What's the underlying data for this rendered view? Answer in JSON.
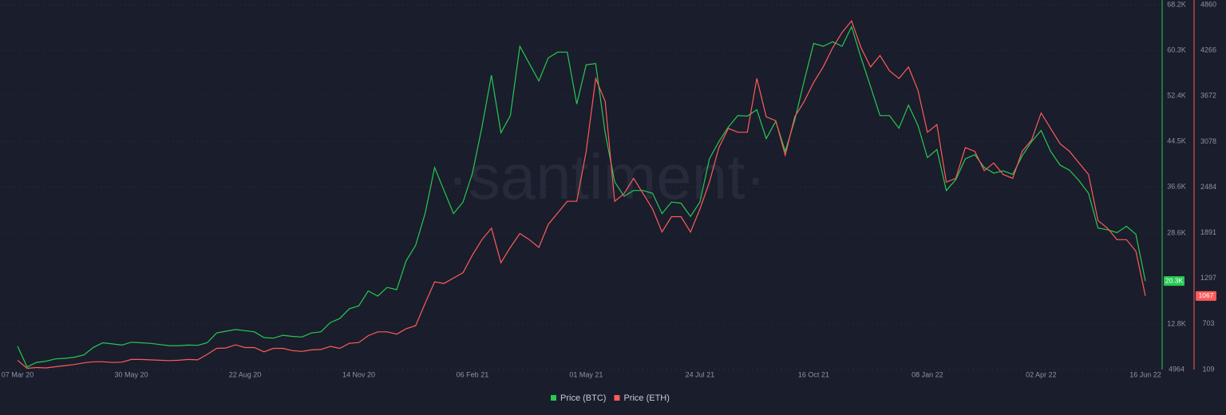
{
  "chart_data": {
    "type": "line",
    "watermark": "·santiment·",
    "x": [
      "07 Mar 20",
      "14 Mar 20",
      "21 Mar 20",
      "28 Mar 20",
      "04 Apr 20",
      "11 Apr 20",
      "18 Apr 20",
      "25 Apr 20",
      "02 May 20",
      "09 May 20",
      "16 May 20",
      "23 May 20",
      "30 May 20",
      "06 Jun 20",
      "13 Jun 20",
      "20 Jun 20",
      "27 Jun 20",
      "04 Jul 20",
      "11 Jul 20",
      "18 Jul 20",
      "25 Jul 20",
      "01 Aug 20",
      "08 Aug 20",
      "15 Aug 20",
      "22 Aug 20",
      "29 Aug 20",
      "05 Sep 20",
      "12 Sep 20",
      "19 Sep 20",
      "26 Sep 20",
      "03 Oct 20",
      "10 Oct 20",
      "17 Oct 20",
      "24 Oct 20",
      "31 Oct 20",
      "07 Nov 20",
      "14 Nov 20",
      "21 Nov 20",
      "28 Nov 20",
      "05 Dec 20",
      "12 Dec 20",
      "19 Dec 20",
      "26 Dec 20",
      "02 Jan 21",
      "09 Jan 21",
      "16 Jan 21",
      "23 Jan 21",
      "30 Jan 21",
      "06 Feb 21",
      "13 Feb 21",
      "20 Feb 21",
      "27 Feb 21",
      "06 Mar 21",
      "13 Mar 21",
      "20 Mar 21",
      "27 Mar 21",
      "03 Apr 21",
      "10 Apr 21",
      "17 Apr 21",
      "24 Apr 21",
      "01 May 21",
      "08 May 21",
      "15 May 21",
      "22 May 21",
      "29 May 21",
      "05 Jun 21",
      "12 Jun 21",
      "19 Jun 21",
      "26 Jun 21",
      "03 Jul 21",
      "10 Jul 21",
      "17 Jul 21",
      "24 Jul 21",
      "31 Jul 21",
      "07 Aug 21",
      "14 Aug 21",
      "21 Aug 21",
      "28 Aug 21",
      "04 Sep 21",
      "11 Sep 21",
      "18 Sep 21",
      "25 Sep 21",
      "02 Oct 21",
      "09 Oct 21",
      "16 Oct 21",
      "23 Oct 21",
      "30 Oct 21",
      "06 Nov 21",
      "13 Nov 21",
      "20 Nov 21",
      "27 Nov 21",
      "04 Dec 21",
      "11 Dec 21",
      "18 Dec 21",
      "25 Dec 21",
      "01 Jan 22",
      "08 Jan 22",
      "15 Jan 22",
      "22 Jan 22",
      "29 Jan 22",
      "05 Feb 22",
      "12 Feb 22",
      "19 Feb 22",
      "26 Feb 22",
      "05 Mar 22",
      "12 Mar 22",
      "19 Mar 22",
      "26 Mar 22",
      "02 Apr 22",
      "09 Apr 22",
      "16 Apr 22",
      "23 Apr 22",
      "30 Apr 22",
      "07 May 22",
      "14 May 22",
      "21 May 22",
      "28 May 22",
      "04 Jun 22",
      "11 Jun 22",
      "16 Jun 22"
    ],
    "xticks": [
      "07 Mar 20",
      "30 May 20",
      "22 Aug 20",
      "14 Nov 20",
      "06 Feb 21",
      "01 May 21",
      "24 Jul 21",
      "16 Oct 21",
      "08 Jan 22",
      "02 Apr 22",
      "16 Jun 22"
    ],
    "series": [
      {
        "name": "Price (BTC)",
        "color": "#26c953",
        "badge": "20.3K",
        "values": [
          9000,
          5400,
          6200,
          6400,
          6800,
          6900,
          7100,
          7500,
          8800,
          9600,
          9400,
          9200,
          9700,
          9600,
          9500,
          9300,
          9100,
          9100,
          9200,
          9150,
          9600,
          11300,
          11600,
          11900,
          11700,
          11500,
          10500,
          10400,
          10900,
          10700,
          10600,
          11300,
          11500,
          13100,
          13800,
          15500,
          16000,
          18600,
          17700,
          19200,
          18800,
          23800,
          26500,
          32000,
          40000,
          36000,
          32000,
          34000,
          39000,
          47000,
          56000,
          46000,
          49000,
          61000,
          58000,
          55000,
          59000,
          60000,
          60000,
          51000,
          57800,
          58000,
          46000,
          37500,
          35000,
          36000,
          36000,
          35500,
          32000,
          34000,
          33800,
          31500,
          34000,
          41500,
          44500,
          47000,
          49000,
          48900,
          50000,
          45000,
          48000,
          42800,
          48200,
          55000,
          61500,
          61000,
          61800,
          61000,
          64400,
          59000,
          54000,
          49000,
          49000,
          46800,
          50800,
          47300,
          41700,
          43100,
          36000,
          37900,
          41500,
          42200,
          40000,
          39000,
          39400,
          38800,
          42000,
          44500,
          46400,
          42800,
          40400,
          39500,
          37700,
          35500,
          29500,
          29200,
          28700,
          29800,
          28400,
          20300
        ]
      },
      {
        "name": "Price (ETH)",
        "color": "#ff5b5b",
        "axis": "y2",
        "badge": "1067",
        "values": [
          230,
          125,
          135,
          130,
          145,
          160,
          175,
          195,
          210,
          210,
          200,
          205,
          240,
          240,
          235,
          230,
          225,
          230,
          240,
          235,
          305,
          385,
          390,
          430,
          395,
          395,
          340,
          385,
          385,
          355,
          345,
          365,
          370,
          410,
          385,
          450,
          460,
          550,
          600,
          600,
          570,
          640,
          680,
          970,
          1250,
          1230,
          1300,
          1370,
          1600,
          1800,
          1950,
          1500,
          1700,
          1880,
          1800,
          1700,
          2000,
          2150,
          2300,
          2300,
          2950,
          3900,
          3600,
          2300,
          2400,
          2600,
          2400,
          2200,
          1900,
          2100,
          2100,
          1900,
          2200,
          2550,
          3000,
          3250,
          3200,
          3200,
          3900,
          3400,
          3350,
          2900,
          3400,
          3600,
          3850,
          4050,
          4300,
          4500,
          4650,
          4300,
          4050,
          4200,
          4000,
          3900,
          4050,
          3750,
          3200,
          3300,
          2550,
          2600,
          3000,
          2950,
          2700,
          2800,
          2650,
          2600,
          2950,
          3100,
          3450,
          3250,
          3050,
          2950,
          2800,
          2650,
          2050,
          1950,
          1800,
          1800,
          1650,
          1067
        ]
      }
    ],
    "ylim": [
      4964,
      68200
    ],
    "yticks": [
      4964,
      {
        "value": 12800,
        "label": "12.8K"
      },
      {
        "value": 28600,
        "label": "28.6K"
      },
      {
        "value": 36600,
        "label": "36.6K"
      },
      {
        "value": 44500,
        "label": "44.5K"
      },
      {
        "value": 52400,
        "label": "52.4K"
      },
      {
        "value": 60300,
        "label": "60.3K"
      },
      {
        "value": 68200,
        "label": "68.2K"
      }
    ],
    "y2lim": [
      109,
      4860
    ],
    "y2ticks": [
      109,
      703,
      1297,
      1891,
      2484,
      3078,
      3672,
      4266,
      4860
    ],
    "grid": true
  }
}
